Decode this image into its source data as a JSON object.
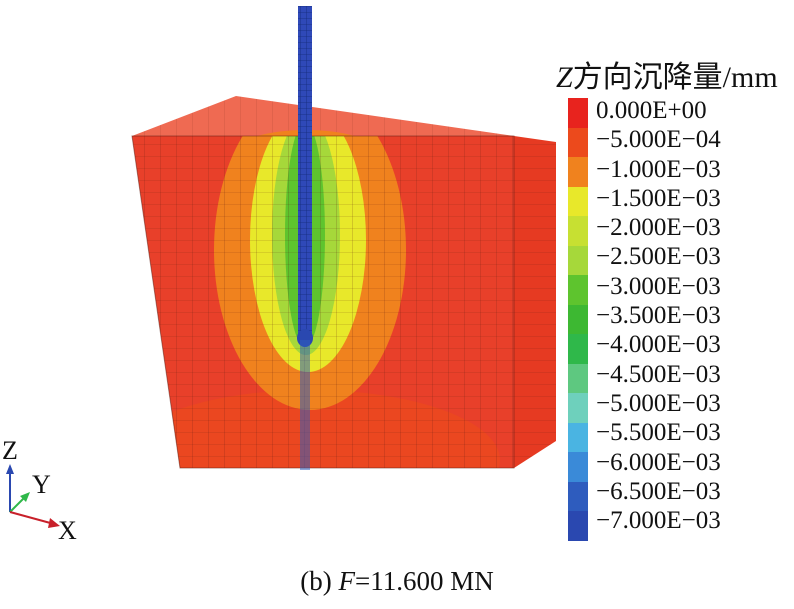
{
  "legend": {
    "title_var": "Z",
    "title_rest": "方向沉降量/mm",
    "labels": [
      "0.000E+00",
      "−5.000E−04",
      "−1.000E−03",
      "−1.500E−03",
      "−2.000E−03",
      "−2.500E−03",
      "−3.000E−03",
      "−3.500E−03",
      "−4.000E−03",
      "−4.500E−03",
      "−5.000E−03",
      "−5.500E−03",
      "−6.000E−03",
      "−6.500E−03",
      "−7.000E−03"
    ],
    "colors": [
      "#e8231e",
      "#ec4a1c",
      "#f0821e",
      "#e8e82a",
      "#c7e032",
      "#a6d83a",
      "#5ec42e",
      "#3db832",
      "#2fb84a",
      "#5ec880",
      "#6ed0bc",
      "#4ab4e2",
      "#3a8ad8",
      "#2e5cbe",
      "#2a48b0"
    ]
  },
  "triad": {
    "z": "Z",
    "y": "Y",
    "x": "X"
  },
  "caption": {
    "prefix": "(b) ",
    "var": "F",
    "value": "=11.600 MN"
  },
  "colors": {
    "soil": "#e8402a",
    "pile": "#2f49b8",
    "top_face": "#ef6a52"
  }
}
